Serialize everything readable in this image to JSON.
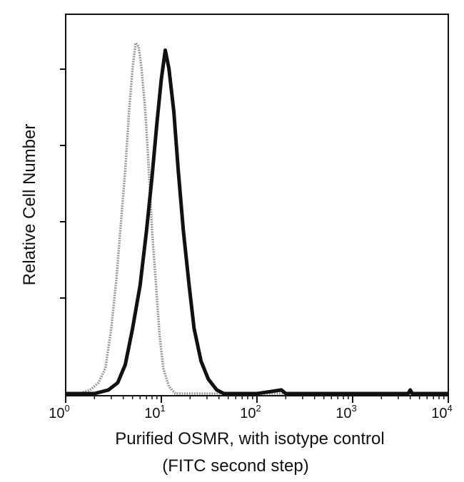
{
  "chart_data": {
    "type": "line",
    "xscale": "log",
    "xlim": [
      1,
      10000
    ],
    "ylim": [
      0,
      1
    ],
    "grid": false,
    "legend": "none",
    "xlabel_line1": "Purified OSMR, with isotype control",
    "xlabel_line2": "(FITC second step)",
    "ylabel": "Relative Cell Number",
    "x_ticks": [
      {
        "base": "10",
        "exp": "0",
        "value": 1
      },
      {
        "base": "10",
        "exp": "1",
        "value": 10
      },
      {
        "base": "10",
        "exp": "2",
        "value": 100
      },
      {
        "base": "10",
        "exp": "3",
        "value": 1000
      },
      {
        "base": "10",
        "exp": "4",
        "value": 10000
      }
    ],
    "y_minor_tick_fractions": [
      0.2,
      0.4,
      0.6,
      0.8
    ],
    "series": [
      {
        "role": "isotype control",
        "color": "#9a9a9a",
        "points": [
          [
            1.0,
            0.0
          ],
          [
            1.4,
            0.0
          ],
          [
            1.8,
            0.01
          ],
          [
            2.2,
            0.03
          ],
          [
            2.6,
            0.07
          ],
          [
            3.0,
            0.18
          ],
          [
            3.4,
            0.32
          ],
          [
            3.8,
            0.48
          ],
          [
            4.2,
            0.62
          ],
          [
            4.6,
            0.78
          ],
          [
            5.0,
            0.9
          ],
          [
            5.4,
            0.97
          ],
          [
            5.8,
            0.96
          ],
          [
            6.2,
            0.9
          ],
          [
            6.8,
            0.78
          ],
          [
            7.4,
            0.62
          ],
          [
            8.0,
            0.45
          ],
          [
            8.8,
            0.3
          ],
          [
            9.6,
            0.16
          ],
          [
            10.5,
            0.07
          ],
          [
            12.0,
            0.02
          ],
          [
            14.0,
            0.0
          ],
          [
            30.0,
            0.0
          ],
          [
            100.0,
            0.0
          ],
          [
            10000.0,
            0.0
          ]
        ]
      },
      {
        "role": "purified OSMR",
        "color": "#111111",
        "points": [
          [
            1.0,
            0.0
          ],
          [
            2.0,
            0.0
          ],
          [
            2.8,
            0.01
          ],
          [
            3.5,
            0.03
          ],
          [
            4.2,
            0.08
          ],
          [
            5.0,
            0.18
          ],
          [
            6.0,
            0.3
          ],
          [
            7.0,
            0.45
          ],
          [
            8.0,
            0.6
          ],
          [
            9.0,
            0.75
          ],
          [
            10.0,
            0.87
          ],
          [
            11.0,
            0.95
          ],
          [
            12.0,
            0.9
          ],
          [
            13.5,
            0.78
          ],
          [
            15.0,
            0.62
          ],
          [
            17.0,
            0.45
          ],
          [
            19.5,
            0.3
          ],
          [
            22.0,
            0.18
          ],
          [
            26.0,
            0.09
          ],
          [
            31.0,
            0.04
          ],
          [
            38.0,
            0.01
          ],
          [
            45.0,
            0.0
          ],
          [
            100.0,
            0.0
          ],
          [
            180.0,
            0.01
          ],
          [
            200.0,
            0.0
          ],
          [
            3800.0,
            0.0
          ],
          [
            4000.0,
            0.01
          ],
          [
            4200.0,
            0.0
          ],
          [
            10000.0,
            0.0
          ]
        ]
      }
    ]
  }
}
